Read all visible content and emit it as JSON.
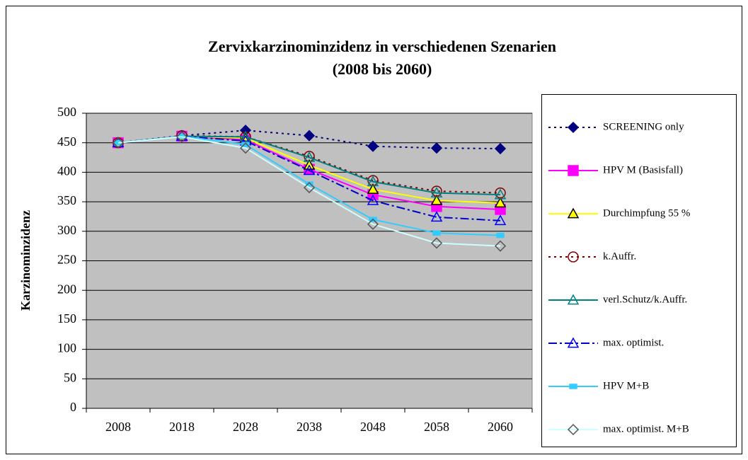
{
  "chart_data": {
    "type": "line",
    "title": "Zervixkarzinominzidenz in verschiedenen Szenarien",
    "subtitle": "(2008 bis 2060)",
    "y_label": "Karzinominzidenz",
    "categories": [
      "2008",
      "2018",
      "2028",
      "2038",
      "2048",
      "2058",
      "2060"
    ],
    "ylim": [
      0,
      500
    ],
    "yticks": [
      0,
      50,
      100,
      150,
      200,
      250,
      300,
      350,
      400,
      450,
      500
    ],
    "grid": true,
    "legend": "right",
    "series": [
      {
        "name": "SCREENING only",
        "color": "#000080",
        "line_style": "dotted",
        "marker": "diamond",
        "marker_fill": "#000080",
        "marker_stroke": "#000080",
        "values": [
          450,
          462,
          471,
          462,
          444,
          441,
          440
        ]
      },
      {
        "name": "HPV M (Basisfall)",
        "color": "#ff00ff",
        "line_style": "solid",
        "marker": "square",
        "marker_fill": "#ff00ff",
        "marker_stroke": "#ff00ff",
        "values": [
          450,
          461,
          455,
          405,
          362,
          342,
          337
        ]
      },
      {
        "name": "Durchimpfung 55 %",
        "color": "#ffff00",
        "line_style": "solid",
        "marker": "triangle",
        "marker_fill": "#ffff00",
        "marker_stroke": "#000000",
        "values": [
          450,
          461,
          458,
          412,
          371,
          352,
          348
        ]
      },
      {
        "name": "k.Auffr.",
        "color": "#800000",
        "line_style": "dotted",
        "marker": "circle",
        "marker_fill": "none",
        "marker_stroke": "#800000",
        "values": [
          450,
          462,
          460,
          427,
          386,
          368,
          365
        ]
      },
      {
        "name": "verl.Schutz/k.Auffr.",
        "color": "#008080",
        "line_style": "solid",
        "marker": "triangle",
        "marker_fill": "none",
        "marker_stroke": "#008080",
        "values": [
          450,
          461,
          460,
          425,
          384,
          365,
          362
        ]
      },
      {
        "name": "max. optimist.",
        "color": "#0000cc",
        "line_style": "dashdot",
        "marker": "triangle",
        "marker_fill": "none",
        "marker_stroke": "#0000ff",
        "values": [
          450,
          461,
          453,
          403,
          352,
          324,
          318
        ]
      },
      {
        "name": "HPV M+B",
        "color": "#33ccff",
        "line_style": "solid",
        "marker": "smallsquare",
        "marker_fill": "#33ccff",
        "marker_stroke": "#33ccff",
        "values": [
          450,
          461,
          447,
          380,
          320,
          297,
          293
        ]
      },
      {
        "name": "max. optimist. M+B",
        "color": "#ccffff",
        "line_style": "solid",
        "marker": "diamond",
        "marker_fill": "none",
        "marker_stroke": "#555555",
        "values": [
          450,
          460,
          441,
          374,
          312,
          280,
          275
        ]
      }
    ]
  }
}
